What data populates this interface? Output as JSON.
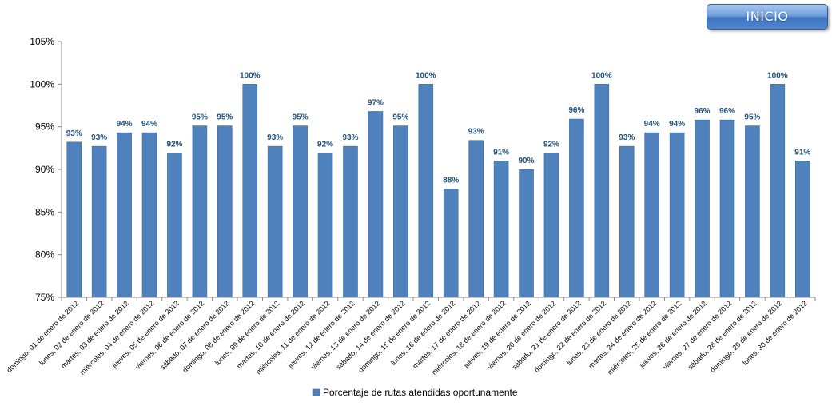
{
  "header": {
    "inicio_label": "INICIO"
  },
  "colors": {
    "bar": "#4f81bd",
    "bar_stroke": "#3d6da8",
    "axis": "#888888",
    "data_label": "#1f4e79"
  },
  "chart_data": {
    "type": "bar",
    "categories": [
      "domingo, 01 de enero de 2012",
      "lunes, 02 de enero de 2012",
      "martes, 03 de enero de 2012",
      "miércoles, 04 de enero de 2012",
      "jueves, 05 de enero de 2012",
      "viernes, 06 de enero de 2012",
      "sábado, 07 de enero de 2012",
      "domingo, 08 de enero de 2012",
      "lunes, 09 de enero de 2012",
      "martes, 10 de enero de 2012",
      "miércoles, 11 de enero de 2012",
      "jueves, 12 de enero de 2012",
      "viernes, 13 de enero de 2012",
      "sábado, 14 de enero de 2012",
      "domingo, 15 de enero de 2012",
      "lunes, 16 de enero de 2012",
      "martes, 17 de enero de 2012",
      "miércoles, 18 de enero de 2012",
      "jueves, 19 de enero de 2012",
      "viernes, 20 de enero de 2012",
      "sábado, 21 de enero de 2012",
      "domingo, 22 de enero de 2012",
      "lunes, 23 de enero de 2012",
      "martes, 24 de enero de 2012",
      "miércoles, 25 de enero de 2012",
      "jueves, 26 de enero de 2012",
      "viernes, 27 de enero de 2012",
      "sábado, 28 de enero de 2012",
      "domingo, 29 de enero de 2012",
      "lunes, 30 de enero de 2012"
    ],
    "series": [
      {
        "name": "Porcentaje de rutas atendidas oportunamente",
        "values": [
          93.2,
          92.7,
          94.3,
          94.3,
          91.9,
          95.1,
          95.1,
          100,
          92.7,
          95.1,
          91.9,
          92.7,
          96.8,
          95.1,
          100,
          87.7,
          93.4,
          91.0,
          90.0,
          91.9,
          95.9,
          100,
          92.7,
          94.3,
          94.3,
          95.8,
          95.8,
          95.1,
          100,
          91.0
        ],
        "labels": [
          "93%",
          "93%",
          "94%",
          "94%",
          "92%",
          "95%",
          "95%",
          "100%",
          "93%",
          "95%",
          "92%",
          "93%",
          "97%",
          "95%",
          "100%",
          "88%",
          "93%",
          "91%",
          "90%",
          "92%",
          "96%",
          "100%",
          "93%",
          "94%",
          "94%",
          "96%",
          "96%",
          "95%",
          "100%",
          "91%"
        ]
      }
    ],
    "ylim": [
      75,
      105
    ],
    "yticks": [
      75,
      80,
      85,
      90,
      95,
      100,
      105
    ],
    "ytick_labels": [
      "75%",
      "80%",
      "85%",
      "90%",
      "95%",
      "100%",
      "105%"
    ],
    "legend_position": "bottom",
    "grid": false,
    "title": "",
    "xlabel": "",
    "ylabel": ""
  }
}
